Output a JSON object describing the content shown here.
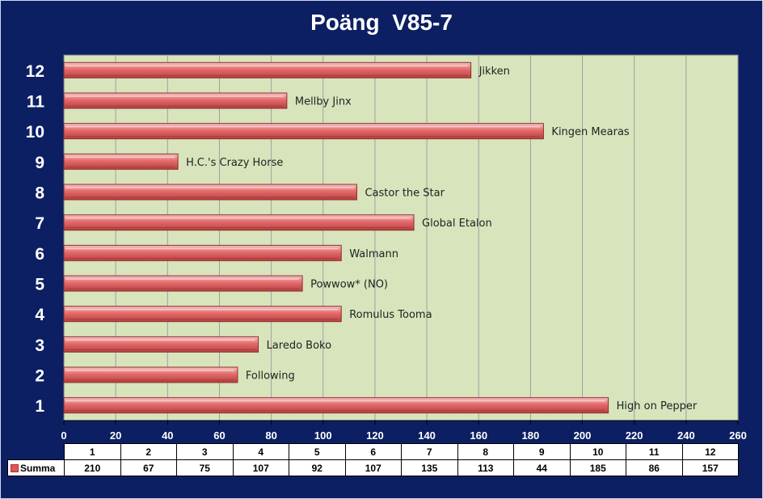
{
  "chart_data": {
    "type": "bar",
    "orientation": "horizontal",
    "title": "Poäng  V85-7",
    "categories": [
      "1",
      "2",
      "3",
      "4",
      "5",
      "6",
      "7",
      "8",
      "9",
      "10",
      "11",
      "12"
    ],
    "bar_labels": [
      "High on Pepper",
      "Following",
      "Laredo Boko",
      "Romulus Tooma",
      "Powwow*  (NO)",
      "Walmann",
      "Global Etalon",
      "Castor the Star",
      "H.C.'s Crazy Horse",
      "Kingen Mearas",
      "Mellby Jinx",
      "Jikken"
    ],
    "series": [
      {
        "name": "Summa",
        "values": [
          210,
          67,
          75,
          107,
          92,
          107,
          135,
          113,
          44,
          185,
          86,
          157
        ]
      }
    ],
    "xlim": [
      0,
      260
    ],
    "xticks": [
      0,
      20,
      40,
      60,
      80,
      100,
      120,
      140,
      160,
      180,
      200,
      220,
      240,
      260
    ],
    "grid": true,
    "colors": {
      "bar": "#e46a6a",
      "plot_bg": "#d8e4bc",
      "page_bg": "#0c1f63",
      "grid": "#a0a0a0"
    }
  }
}
